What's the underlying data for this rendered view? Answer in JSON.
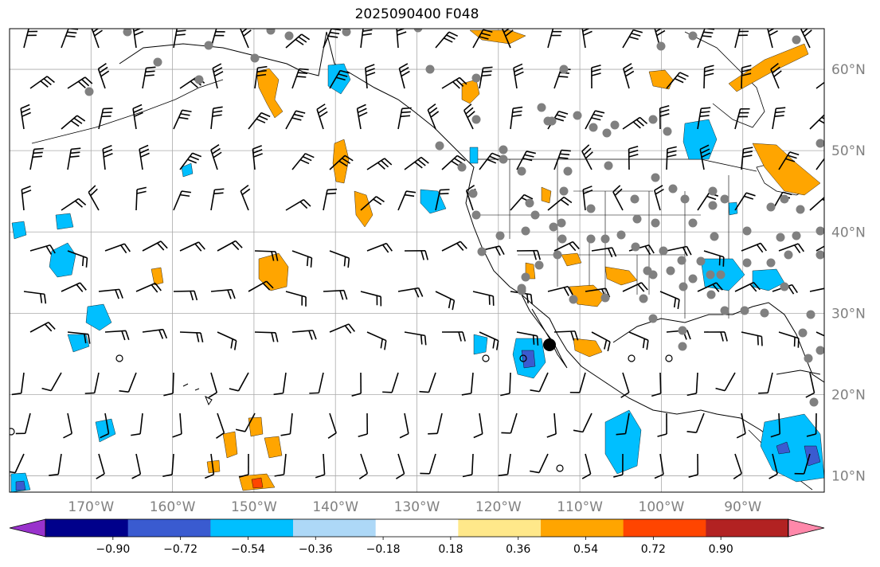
{
  "title": "2025090400 F048",
  "map": {
    "lat_labels": [
      "60°N",
      "50°N",
      "40°N",
      "30°N",
      "20°N",
      "10°N"
    ],
    "lon_labels": [
      "170°W",
      "160°W",
      "150°W",
      "140°W",
      "130°W",
      "120°W",
      "110°W",
      "100°W",
      "90°W"
    ],
    "lat_values": [
      60,
      50,
      40,
      30,
      20,
      10
    ],
    "lon_values": [
      -170,
      -160,
      -150,
      -140,
      -130,
      -120,
      -110,
      -100,
      -90
    ],
    "lon_range": [
      -180,
      -80
    ],
    "lat_range": [
      8,
      65
    ],
    "gridlines": true
  },
  "colorbar": {
    "tick_labels": [
      "−0.90",
      "−0.72",
      "−0.54",
      "−0.36",
      "−0.18",
      "0.18",
      "0.36",
      "0.54",
      "0.72",
      "0.90"
    ],
    "colors": [
      "#9932cc",
      "#00008b",
      "#3a5bd0",
      "#00bfff",
      "#add8f7",
      "#ffffff",
      "#ffe88a",
      "#ffa500",
      "#ff4500",
      "#b22222",
      "#ff88aa"
    ],
    "extend": "both"
  }
}
